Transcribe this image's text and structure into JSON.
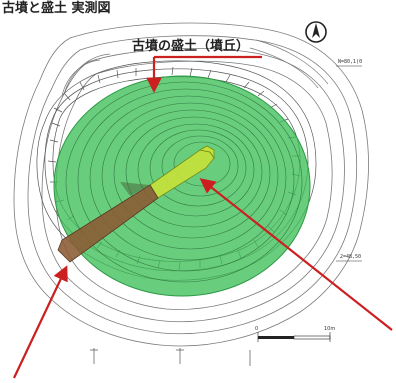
{
  "header": {
    "title_fragment": "古墳と盛土 実測図"
  },
  "annotation": {
    "mound_label": "古墳の盛土（墳丘）"
  },
  "north": {
    "symbol": "N"
  },
  "legend_ticks": {
    "upper_right": "N=80,1(0",
    "right_side": "2=48,50"
  },
  "colors": {
    "mound_fill": "#3fbf5a",
    "mound_stroke": "#2d9a44",
    "chamber_fill": "#c6e23a",
    "passage_fill": "#8b5a33",
    "arrow": "#cc1f1f",
    "contour": "#7a7a7a"
  },
  "scale_bar": {
    "label_0": "0",
    "label_end": "10m"
  }
}
